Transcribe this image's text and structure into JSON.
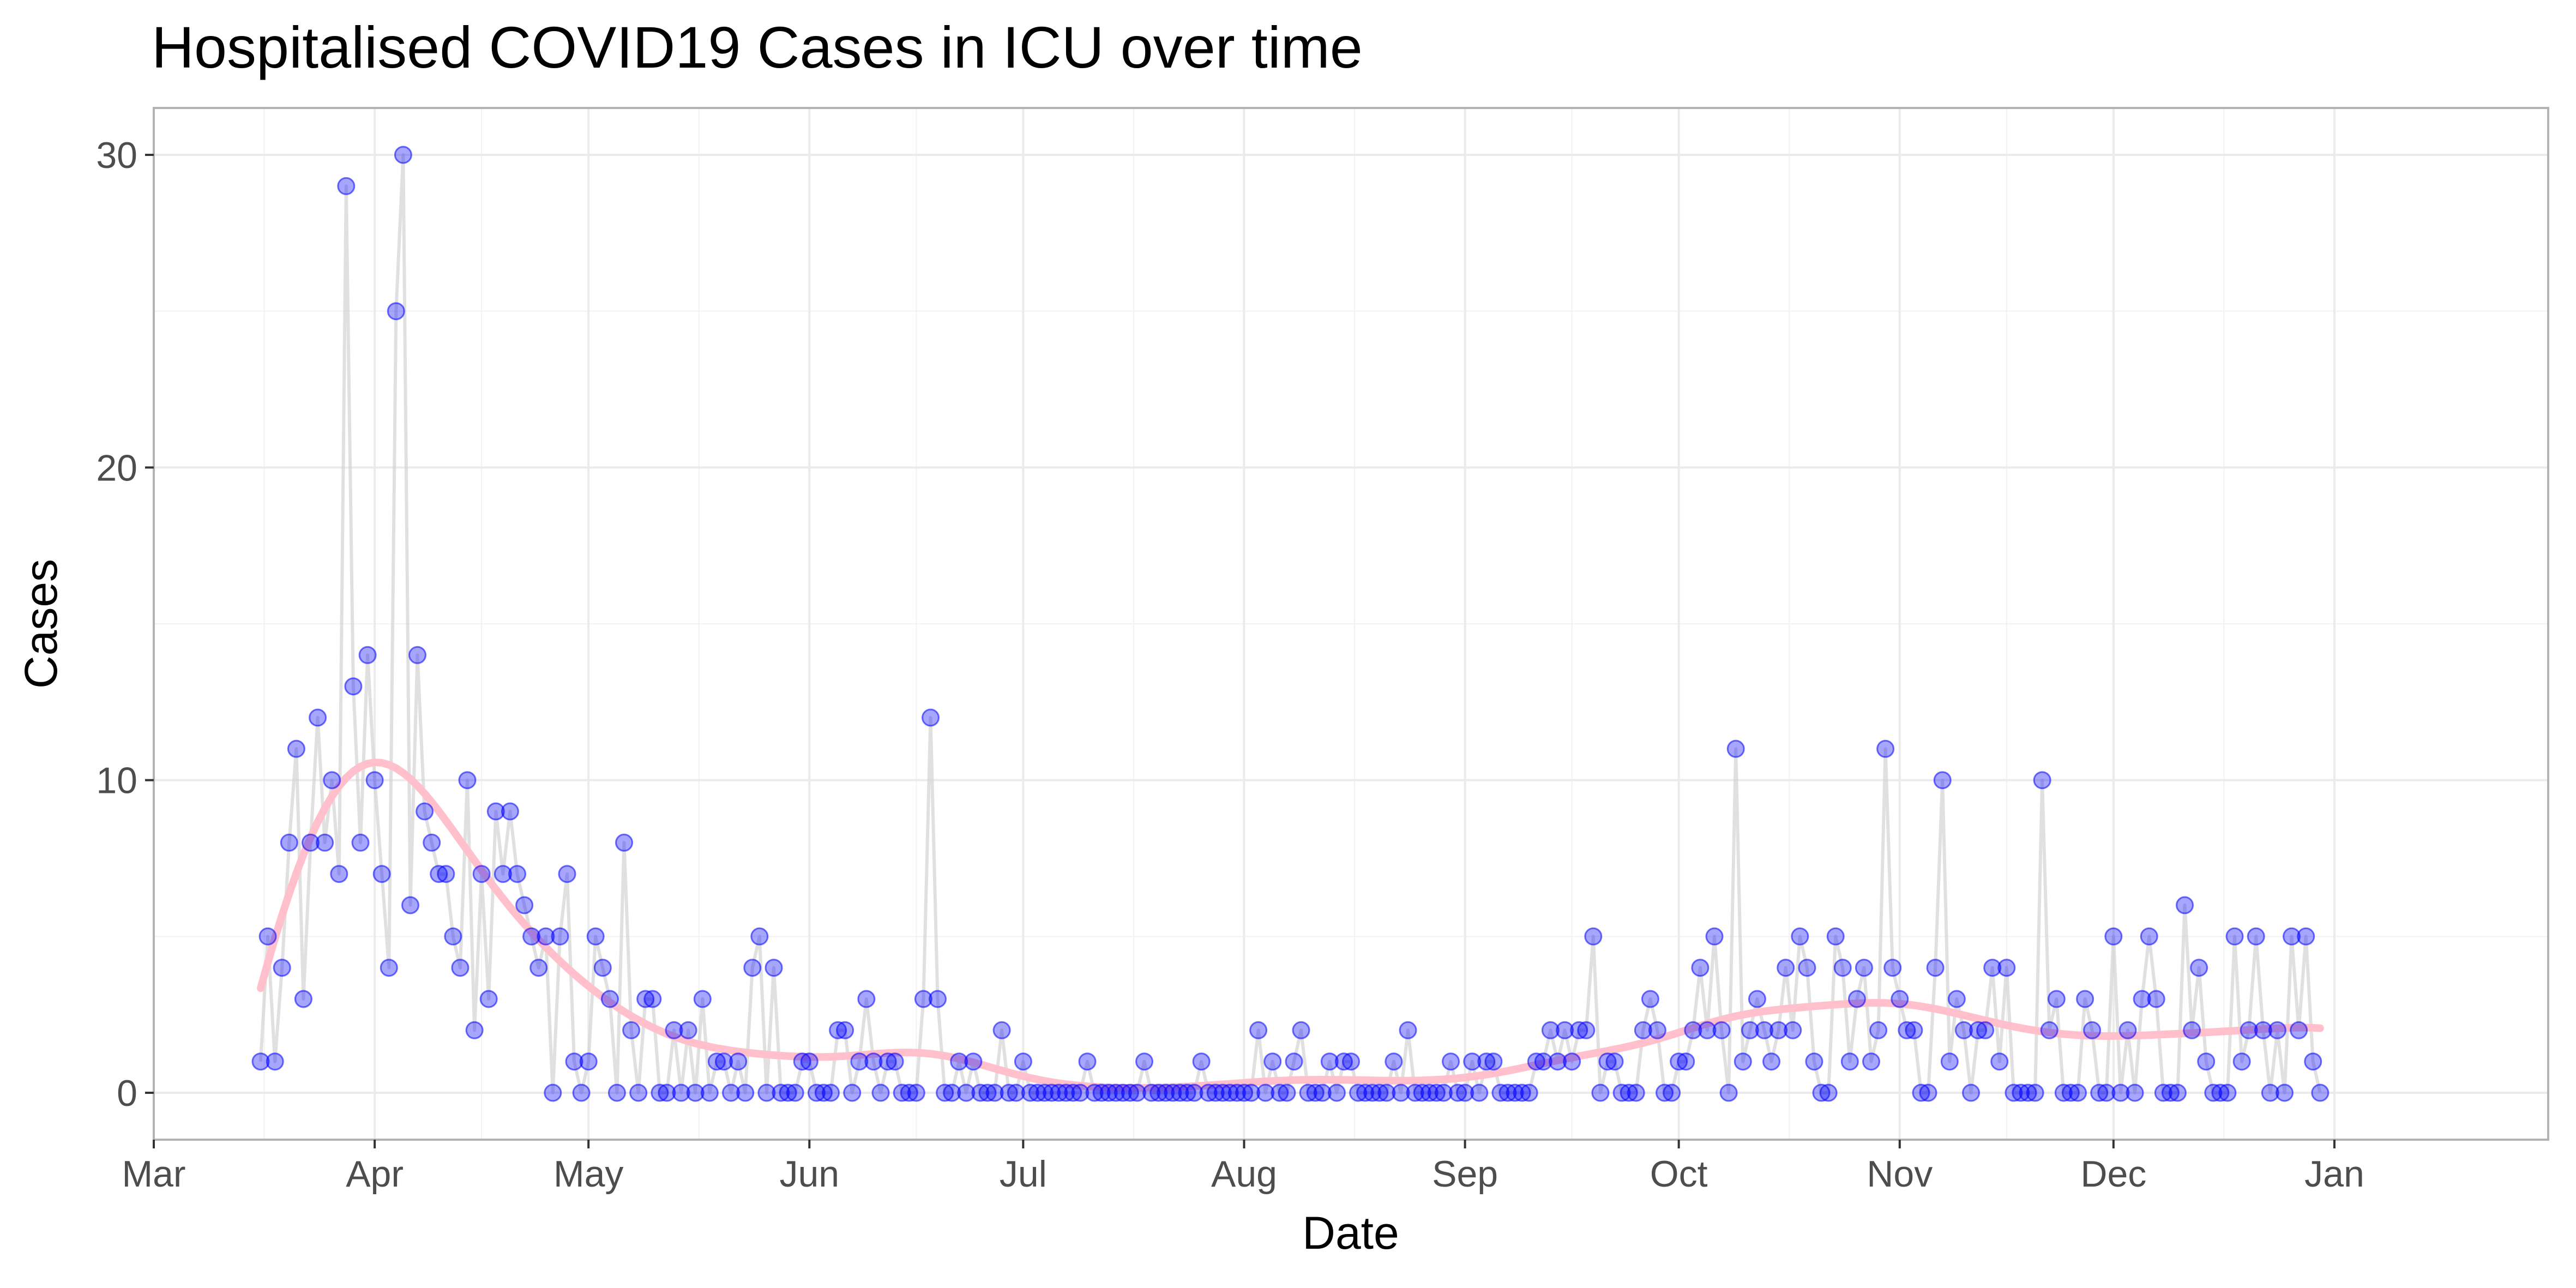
{
  "chart_data": {
    "type": "scatter",
    "title": "Hospitalised COVID19 Cases in ICU over time",
    "xlabel": "Date",
    "ylabel": "Cases",
    "x_tick_labels": [
      "Mar",
      "Apr",
      "May",
      "Jun",
      "Jul",
      "Aug",
      "Sep",
      "Oct",
      "Nov",
      "Dec",
      "Jan"
    ],
    "x_ticks": [
      "2020-03-01",
      "2020-04-01",
      "2020-05-01",
      "2020-06-01",
      "2020-07-01",
      "2020-08-01",
      "2020-09-01",
      "2020-10-01",
      "2020-11-01",
      "2020-12-01",
      "2021-01-01"
    ],
    "xlim": [
      "2020-03-01",
      "2021-01-31"
    ],
    "y_ticks": [
      0,
      10,
      20,
      30
    ],
    "ylim": [
      -1.5,
      31.5
    ],
    "grid": true,
    "colors": {
      "points": "#0000ff",
      "connecting_line": "#d3d3d3",
      "smooth_line": "#ffc0cb",
      "panel_border": "#b3b3b3",
      "grid": "#ebebeb"
    },
    "start_date": "2020-03-16",
    "series": [
      {
        "values": [
          1,
          5,
          1,
          4,
          8,
          11,
          3,
          8,
          12,
          8,
          10,
          7,
          29,
          13,
          8,
          14,
          10,
          7,
          4,
          25,
          30,
          6,
          14,
          9,
          8,
          7,
          7,
          5,
          4,
          10,
          2,
          7,
          3,
          9,
          7,
          9,
          7,
          6,
          5,
          4,
          5,
          0,
          5,
          7,
          1,
          0,
          1,
          5,
          4,
          3,
          0,
          8,
          2,
          0,
          3,
          3,
          0,
          0,
          2,
          0,
          2,
          0,
          3,
          0,
          1,
          1,
          0,
          1,
          0,
          4,
          5,
          0,
          4,
          0,
          0,
          0,
          1,
          1,
          0,
          0,
          0,
          2,
          2,
          0,
          1,
          3,
          1,
          0,
          1,
          1,
          0,
          0,
          0,
          3,
          12,
          3,
          0,
          0,
          1,
          0,
          1,
          0,
          0,
          0,
          2,
          0,
          0,
          1,
          0,
          0,
          0,
          0,
          0,
          0,
          0,
          0,
          1,
          0,
          0,
          0,
          0,
          0,
          0,
          0,
          1,
          0,
          0,
          0,
          0,
          0,
          0,
          0,
          1,
          0,
          0,
          0,
          0,
          0,
          0,
          0,
          2,
          0,
          1,
          0,
          0,
          1,
          2,
          0,
          0,
          0,
          1,
          0,
          1,
          1,
          0,
          0,
          0,
          0,
          0,
          1,
          0,
          2,
          0,
          0,
          0,
          0,
          0,
          1,
          0,
          0,
          1,
          0,
          1,
          1,
          0,
          0,
          0,
          0,
          0,
          1,
          1,
          2,
          1,
          2,
          1,
          2,
          2,
          5,
          0,
          1,
          1,
          0,
          0,
          0,
          2,
          3,
          2,
          0,
          0,
          1,
          1,
          2,
          4,
          2,
          5,
          2,
          0,
          11,
          1,
          2,
          3,
          2,
          1,
          2,
          4,
          2,
          5,
          4,
          1,
          0,
          0,
          5,
          4,
          1,
          3,
          4,
          1,
          2,
          11,
          4,
          3,
          2,
          2,
          0,
          0,
          4,
          10,
          1,
          3,
          2,
          0,
          2,
          2,
          4,
          1,
          4,
          0,
          0,
          0,
          0,
          10,
          2,
          3,
          0,
          0,
          0,
          3,
          2,
          0,
          0,
          5,
          0,
          2,
          0,
          3,
          5,
          3,
          0,
          0,
          0,
          6,
          2,
          4,
          1,
          0,
          0,
          0,
          5,
          1,
          2,
          5,
          2,
          0,
          2,
          0,
          5,
          2,
          5,
          1,
          0
        ]
      }
    ]
  }
}
